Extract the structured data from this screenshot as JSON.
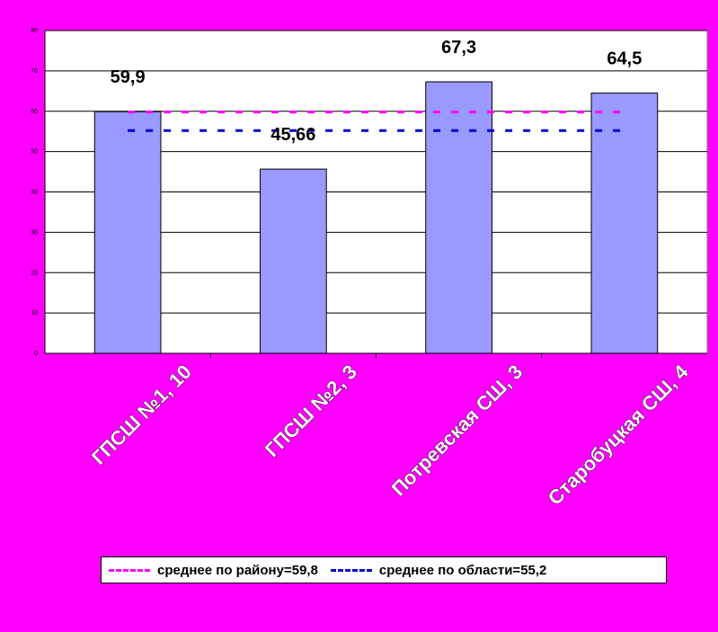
{
  "chart_data": {
    "type": "bar",
    "categories": [
      "ГПСШ №1, 10",
      "ГПСШ №2, 3",
      "Потревская СШ, 3",
      "Старобуцкая СШ, 4"
    ],
    "values": [
      59.9,
      45.66,
      67.3,
      64.5
    ],
    "data_labels": [
      "59,9",
      "45,66",
      "67,3",
      "64,5"
    ],
    "ylim": [
      0,
      80
    ],
    "yticks": [
      0,
      10,
      20,
      30,
      40,
      50,
      60,
      70,
      80
    ],
    "grid": true,
    "bar_color": "#9999FF",
    "reference_lines": [
      {
        "label": "среднее по району=59,8",
        "value": 59.8,
        "color": "#FF00FF"
      },
      {
        "label": "среднее по области=55,2",
        "value": 55.2,
        "color": "#0000CC"
      }
    ],
    "legend_position": "bottom"
  },
  "colors": {
    "background": "#FF00FF",
    "plot_background": "#FFFFFF",
    "bar": "#9999FF"
  }
}
